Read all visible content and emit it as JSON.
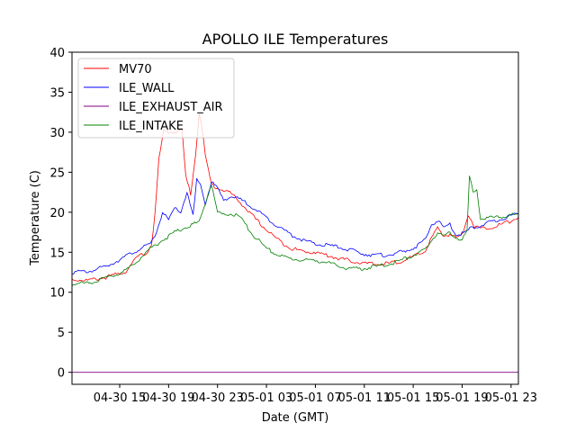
{
  "chart_data": {
    "type": "line",
    "title": "APOLLO ILE Temperatures",
    "xlabel": "Date (GMT)",
    "ylabel": "Temperature (C)",
    "x_unit": "hours since 04-30 00:00 GMT",
    "xlim": [
      11.1,
      47.6
    ],
    "ylim": [
      -1.5,
      40
    ],
    "yticks": [
      0,
      5,
      10,
      15,
      20,
      25,
      30,
      35,
      40
    ],
    "xticks": [
      {
        "value": 15,
        "label": "04-30 15"
      },
      {
        "value": 19,
        "label": "04-30 19"
      },
      {
        "value": 23,
        "label": "04-30 23"
      },
      {
        "value": 27,
        "label": "05-01 03"
      },
      {
        "value": 31,
        "label": "05-01 07"
      },
      {
        "value": 35,
        "label": "05-01 11"
      },
      {
        "value": 39,
        "label": "05-01 15"
      },
      {
        "value": 43,
        "label": "05-01 19"
      },
      {
        "value": 47,
        "label": "05-01 23"
      }
    ],
    "legend_position": "top-left",
    "series": [
      {
        "name": "MV70",
        "color": "#ff0000",
        "x": [
          11.1,
          12.5,
          14.0,
          15.5,
          16.5,
          17.3,
          17.6,
          17.9,
          18.2,
          18.6,
          19.0,
          19.6,
          20.1,
          20.4,
          20.8,
          21.2,
          21.5,
          21.7,
          22.0,
          22.5,
          23.0,
          24.0,
          25.0,
          26.0,
          27.0,
          28.0,
          29.0,
          30.0,
          31.0,
          32.0,
          33.0,
          34.0,
          35.0,
          36.0,
          37.0,
          38.0,
          39.0,
          40.0,
          40.5,
          41.0,
          41.5,
          42.0,
          42.5,
          43.0,
          43.5,
          44.0,
          44.5,
          45.0,
          46.0,
          47.0,
          47.6
        ],
        "y": [
          11.6,
          11.5,
          11.9,
          12.6,
          14.5,
          15.0,
          16.0,
          20.0,
          26.5,
          30.2,
          30.0,
          30.1,
          30.2,
          24.5,
          22.3,
          27.0,
          32.5,
          31.0,
          27.0,
          23.5,
          23.0,
          22.5,
          21.0,
          19.3,
          17.8,
          16.5,
          15.5,
          15.1,
          15.0,
          14.6,
          14.2,
          13.9,
          13.6,
          13.5,
          13.6,
          13.9,
          14.4,
          15.2,
          16.8,
          18.0,
          17.0,
          17.3,
          16.8,
          17.2,
          19.8,
          18.2,
          18.0,
          18.0,
          18.4,
          18.9,
          19.4
        ]
      },
      {
        "name": "ILE_WALL",
        "color": "#0000ff",
        "x": [
          11.1,
          12.5,
          14.0,
          15.5,
          16.5,
          17.5,
          18.0,
          18.5,
          19.0,
          19.5,
          20.0,
          20.5,
          21.0,
          21.3,
          21.6,
          22.0,
          22.5,
          23.0,
          23.5,
          24.0,
          25.0,
          26.0,
          27.0,
          28.0,
          29.0,
          30.0,
          31.0,
          32.0,
          33.0,
          34.0,
          35.0,
          36.0,
          37.0,
          38.0,
          39.0,
          40.0,
          40.5,
          41.0,
          41.5,
          42.0,
          42.5,
          43.0,
          43.5,
          44.0,
          44.5,
          45.0,
          46.0,
          47.0,
          47.6
        ],
        "y": [
          12.5,
          12.6,
          13.3,
          14.5,
          15.3,
          16.0,
          17.5,
          20.0,
          19.0,
          20.5,
          20.0,
          22.5,
          19.5,
          24.0,
          23.5,
          21.0,
          23.8,
          23.0,
          21.5,
          22.0,
          21.5,
          20.5,
          19.3,
          18.2,
          17.2,
          16.5,
          16.0,
          15.9,
          15.6,
          15.2,
          14.8,
          14.6,
          14.7,
          15.0,
          15.5,
          16.5,
          18.5,
          19.0,
          18.0,
          18.5,
          17.2,
          17.3,
          17.8,
          18.2,
          18.3,
          18.6,
          19.0,
          19.6,
          19.8
        ]
      },
      {
        "name": "ILE_EXHAUST_AIR",
        "color": "#800080",
        "x": [
          11.1,
          47.6
        ],
        "y": [
          0,
          0
        ]
      },
      {
        "name": "ILE_INTAKE",
        "color": "#008000",
        "x": [
          11.1,
          12.5,
          14.0,
          15.5,
          16.5,
          17.5,
          18.5,
          19.5,
          20.5,
          21.5,
          22.5,
          23.0,
          23.5,
          24.0,
          24.5,
          25.0,
          26.0,
          27.0,
          28.0,
          29.0,
          30.0,
          31.0,
          32.0,
          33.0,
          34.0,
          35.0,
          36.0,
          37.0,
          38.0,
          39.0,
          40.0,
          40.5,
          41.0,
          41.5,
          42.0,
          42.5,
          43.0,
          43.4,
          43.6,
          43.9,
          44.2,
          44.5,
          45.0,
          46.0,
          47.0,
          47.6
        ],
        "y": [
          11.0,
          11.2,
          11.8,
          12.7,
          14.0,
          15.5,
          16.5,
          17.5,
          18.2,
          18.8,
          23.5,
          20.0,
          19.7,
          19.8,
          19.7,
          19.0,
          17.0,
          15.5,
          14.6,
          14.2,
          14.0,
          14.0,
          13.7,
          13.2,
          12.9,
          13.0,
          13.2,
          13.5,
          14.0,
          14.6,
          15.3,
          16.5,
          17.5,
          17.0,
          17.5,
          16.8,
          16.6,
          17.5,
          24.5,
          22.5,
          23.0,
          19.2,
          19.3,
          19.4,
          19.6,
          19.8
        ]
      }
    ]
  }
}
